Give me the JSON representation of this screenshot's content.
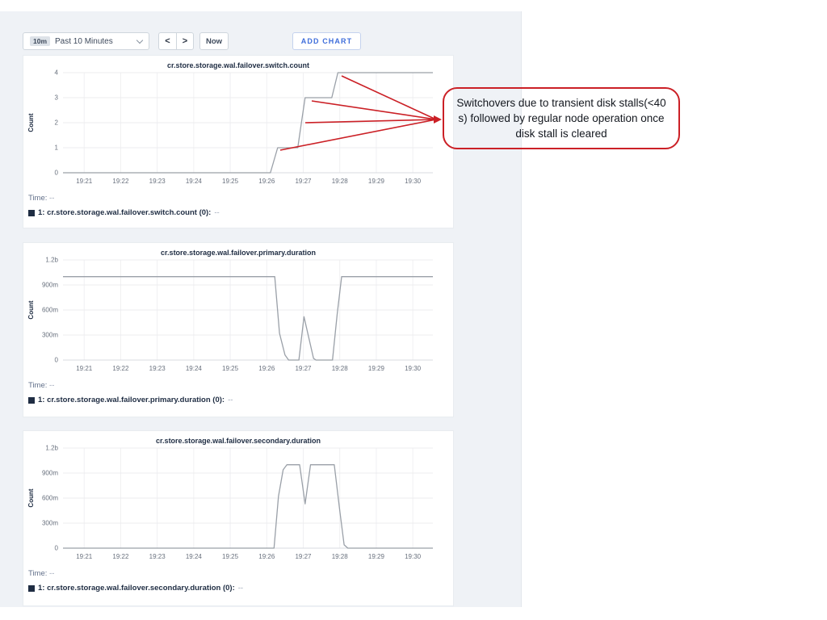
{
  "toolbar": {
    "range_badge": "10m",
    "range_label": "Past 10 Minutes",
    "back_label": "<",
    "forward_label": ">",
    "now_label": "Now",
    "add_chart_label": "ADD CHART"
  },
  "annotation": {
    "text": "Switchovers due to transient disk stalls(<40 s) followed by regular node operation once disk stall is cleared",
    "color": "#cb2026",
    "arrow_targets": [
      [
        423,
        94
      ],
      [
        386,
        125
      ],
      [
        378,
        152
      ],
      [
        347,
        186
      ]
    ],
    "arrow_point": [
      547,
      148
    ]
  },
  "colors": {
    "series_line": "#9aa0a8",
    "legend_swatch": "#1f2d43",
    "accent_blue": "#3f6edb",
    "annotation_red": "#cb2026",
    "page_background": "#eff2f6"
  },
  "chart_data": [
    {
      "type": "line",
      "title": "cr.store.storage.wal.failover.switch.count",
      "ylabel": "Count",
      "xlim": [
        20.42,
        30.55
      ],
      "ylim": [
        0,
        4.4
      ],
      "grid": true,
      "yticks": [
        {
          "v": 0,
          "label": "0"
        },
        {
          "v": 1,
          "label": "1"
        },
        {
          "v": 2,
          "label": "2"
        },
        {
          "v": 3,
          "label": "3"
        },
        {
          "v": 4,
          "label": "4"
        }
      ],
      "xticks": [
        {
          "v": 21,
          "label": "19:21"
        },
        {
          "v": 22,
          "label": "19:22"
        },
        {
          "v": 23,
          "label": "19:23"
        },
        {
          "v": 24,
          "label": "19:24"
        },
        {
          "v": 25,
          "label": "19:25"
        },
        {
          "v": 26,
          "label": "19:26"
        },
        {
          "v": 27,
          "label": "19:27"
        },
        {
          "v": 28,
          "label": "19:28"
        },
        {
          "v": 29,
          "label": "19:29"
        },
        {
          "v": 30,
          "label": "19:30"
        }
      ],
      "series": [
        {
          "name": "1: cr.store.storage.wal.failover.switch.count (0)",
          "points": [
            [
              20.42,
              0
            ],
            [
              26.1,
              0
            ],
            [
              26.3,
              1
            ],
            [
              26.85,
              1
            ],
            [
              26.95,
              2
            ],
            [
              27.05,
              3
            ],
            [
              27.78,
              3
            ],
            [
              27.95,
              4
            ],
            [
              30.55,
              4
            ]
          ]
        }
      ],
      "legend": {
        "time_label": "Time:",
        "time_value": "--",
        "series_label": "1: cr.store.storage.wal.failover.switch.count (0):",
        "series_value": "--"
      }
    },
    {
      "type": "line",
      "title": "cr.store.storage.wal.failover.primary.duration",
      "ylabel": "Count",
      "xlim": [
        20.42,
        30.55
      ],
      "ylim": [
        0,
        1.32
      ],
      "grid": true,
      "yticks": [
        {
          "v": 0,
          "label": "0"
        },
        {
          "v": 0.3,
          "label": "300m"
        },
        {
          "v": 0.6,
          "label": "600m"
        },
        {
          "v": 0.9,
          "label": "900m"
        },
        {
          "v": 1.2,
          "label": "1.2b"
        }
      ],
      "xticks": [
        {
          "v": 21,
          "label": "19:21"
        },
        {
          "v": 22,
          "label": "19:22"
        },
        {
          "v": 23,
          "label": "19:23"
        },
        {
          "v": 24,
          "label": "19:24"
        },
        {
          "v": 25,
          "label": "19:25"
        },
        {
          "v": 26,
          "label": "19:26"
        },
        {
          "v": 27,
          "label": "19:27"
        },
        {
          "v": 28,
          "label": "19:28"
        },
        {
          "v": 29,
          "label": "19:29"
        },
        {
          "v": 30,
          "label": "19:30"
        }
      ],
      "series": [
        {
          "name": "1: cr.store.storage.wal.failover.primary.duration (0)",
          "points": [
            [
              20.42,
              1.0
            ],
            [
              26.22,
              1.0
            ],
            [
              26.35,
              0.32
            ],
            [
              26.5,
              0.06
            ],
            [
              26.6,
              0
            ],
            [
              26.88,
              0
            ],
            [
              27.02,
              0.52
            ],
            [
              27.28,
              0.02
            ],
            [
              27.35,
              0
            ],
            [
              27.8,
              0
            ],
            [
              27.93,
              0.55
            ],
            [
              28.05,
              1.0
            ],
            [
              30.55,
              1.0
            ]
          ]
        }
      ],
      "legend": {
        "time_label": "Time:",
        "time_value": "--",
        "series_label": "1: cr.store.storage.wal.failover.primary.duration (0):",
        "series_value": "--"
      }
    },
    {
      "type": "line",
      "title": "cr.store.storage.wal.failover.secondary.duration",
      "ylabel": "Count",
      "xlim": [
        20.42,
        30.55
      ],
      "ylim": [
        0,
        1.32
      ],
      "grid": true,
      "yticks": [
        {
          "v": 0,
          "label": "0"
        },
        {
          "v": 0.3,
          "label": "300m"
        },
        {
          "v": 0.6,
          "label": "600m"
        },
        {
          "v": 0.9,
          "label": "900m"
        },
        {
          "v": 1.2,
          "label": "1.2b"
        }
      ],
      "xticks": [
        {
          "v": 21,
          "label": "19:21"
        },
        {
          "v": 22,
          "label": "19:22"
        },
        {
          "v": 23,
          "label": "19:23"
        },
        {
          "v": 24,
          "label": "19:24"
        },
        {
          "v": 25,
          "label": "19:25"
        },
        {
          "v": 26,
          "label": "19:26"
        },
        {
          "v": 27,
          "label": "19:27"
        },
        {
          "v": 28,
          "label": "19:28"
        },
        {
          "v": 29,
          "label": "19:29"
        },
        {
          "v": 30,
          "label": "19:30"
        }
      ],
      "series": [
        {
          "name": "1: cr.store.storage.wal.failover.secondary.duration (0)",
          "points": [
            [
              20.42,
              0
            ],
            [
              26.2,
              0
            ],
            [
              26.32,
              0.62
            ],
            [
              26.45,
              0.94
            ],
            [
              26.55,
              1.0
            ],
            [
              26.9,
              1.0
            ],
            [
              27.05,
              0.53
            ],
            [
              27.2,
              1.0
            ],
            [
              27.85,
              1.0
            ],
            [
              28.0,
              0.45
            ],
            [
              28.12,
              0.04
            ],
            [
              28.22,
              0
            ],
            [
              30.55,
              0
            ]
          ]
        }
      ],
      "legend": {
        "time_label": "Time:",
        "time_value": "--",
        "series_label": "1: cr.store.storage.wal.failover.secondary.duration (0):",
        "series_value": "--"
      }
    }
  ]
}
